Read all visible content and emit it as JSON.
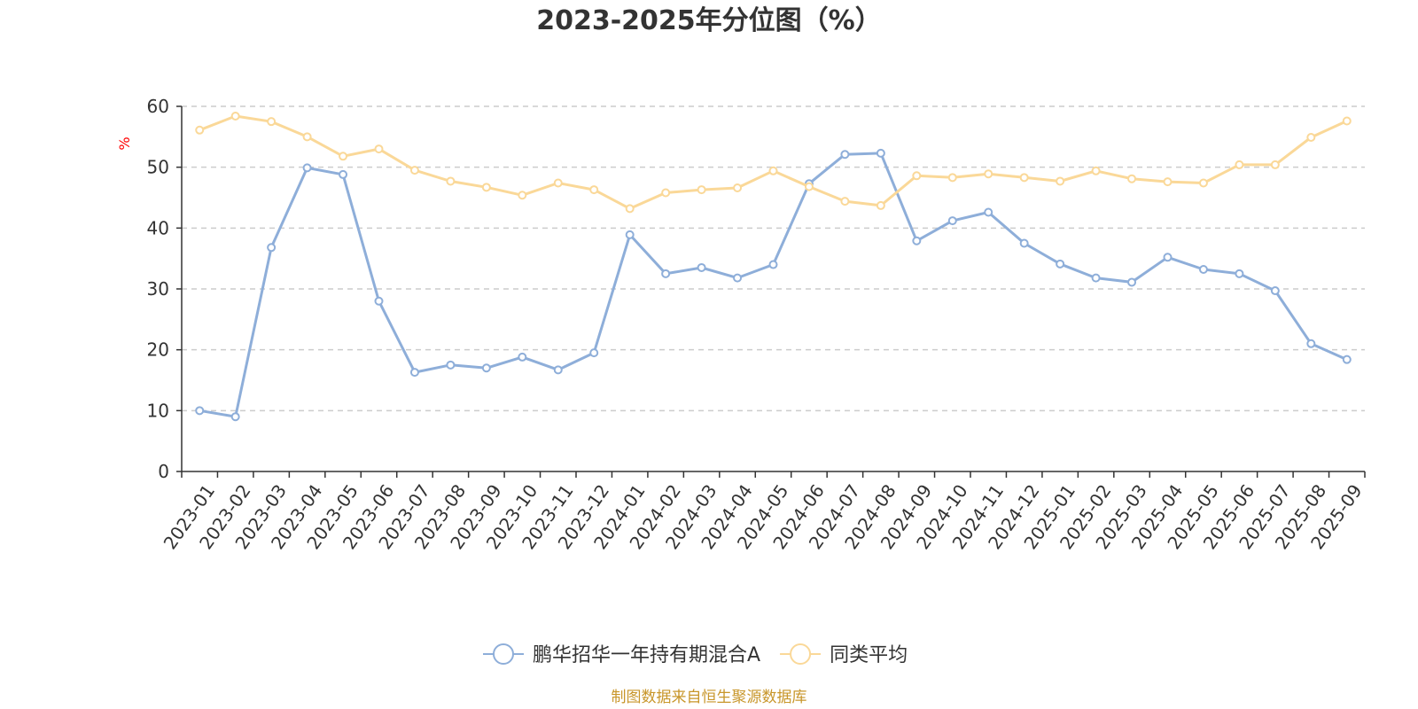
{
  "chart_data": {
    "type": "line",
    "title": "2023-2025年分位图（%）",
    "ylabel": "%",
    "ylim": [
      0,
      60
    ],
    "yticks": [
      0,
      10,
      20,
      30,
      40,
      50,
      60
    ],
    "grid": true,
    "legend_position": "bottom-center",
    "categories": [
      "2023-01",
      "2023-02",
      "2023-03",
      "2023-04",
      "2023-05",
      "2023-06",
      "2023-07",
      "2023-08",
      "2023-09",
      "2023-10",
      "2023-11",
      "2023-12",
      "2024-01",
      "2024-02",
      "2024-03",
      "2024-04",
      "2024-05",
      "2024-06",
      "2024-07",
      "2024-08",
      "2024-09",
      "2024-10",
      "2024-11",
      "2024-12",
      "2025-01",
      "2025-02",
      "2025-03",
      "2025-04",
      "2025-05",
      "2025-06",
      "2025-07",
      "2025-08",
      "2025-09"
    ],
    "series": [
      {
        "name": "鹏华招华一年持有期混合A",
        "color": "#8eaed9",
        "values": [
          10.0,
          9.0,
          36.8,
          49.9,
          48.8,
          28.0,
          16.3,
          17.5,
          17.0,
          18.8,
          16.7,
          19.5,
          38.9,
          32.5,
          33.5,
          31.8,
          34.0,
          47.3,
          52.1,
          52.3,
          37.9,
          41.2,
          42.6,
          37.5,
          34.1,
          31.8,
          31.1,
          35.2,
          33.2,
          32.5,
          29.7,
          21.0,
          18.4
        ]
      },
      {
        "name": "同类平均",
        "color": "#fad898",
        "values": [
          56.1,
          58.4,
          57.5,
          55.0,
          51.8,
          53.0,
          49.5,
          47.7,
          46.7,
          45.4,
          47.4,
          46.3,
          43.2,
          45.8,
          46.3,
          46.6,
          49.4,
          46.8,
          44.4,
          43.7,
          48.6,
          48.3,
          48.9,
          48.3,
          47.7,
          49.4,
          48.1,
          47.6,
          47.4,
          50.4,
          50.4,
          54.9,
          57.6
        ]
      }
    ]
  },
  "footer": {
    "source": "制图数据来自恒生聚源数据库"
  }
}
